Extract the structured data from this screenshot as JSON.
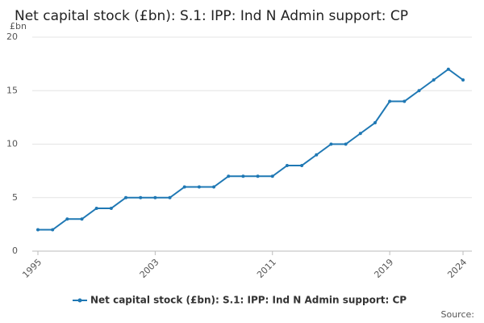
{
  "chart_data": {
    "type": "line",
    "title": "Net capital stock (£bn): S.1: IPP: Ind N Admin support: CP",
    "y_unit": "£bn",
    "source": "Source:",
    "x": [
      1995,
      1996,
      1997,
      1998,
      1999,
      2000,
      2001,
      2002,
      2003,
      2004,
      2005,
      2006,
      2007,
      2008,
      2009,
      2010,
      2011,
      2012,
      2013,
      2014,
      2015,
      2016,
      2017,
      2018,
      2019,
      2020,
      2021,
      2022,
      2023,
      2024
    ],
    "series": [
      {
        "name": "Net capital stock (£bn): S.1: IPP: Ind N Admin support: CP",
        "color": "#1f78b4",
        "values": [
          2,
          2,
          3,
          3,
          4,
          4,
          5,
          5,
          5,
          5,
          6,
          6,
          6,
          7,
          7,
          7,
          7,
          8,
          8,
          9,
          10,
          10,
          11,
          12,
          14,
          14,
          15,
          16,
          17,
          16
        ]
      }
    ],
    "xlim": [
      1995,
      2024
    ],
    "xticks": [
      1995,
      2003,
      2011,
      2019,
      2024
    ],
    "ylim": [
      0,
      20
    ],
    "yticks": [
      0,
      5,
      10,
      15,
      20
    ],
    "grid": true
  }
}
